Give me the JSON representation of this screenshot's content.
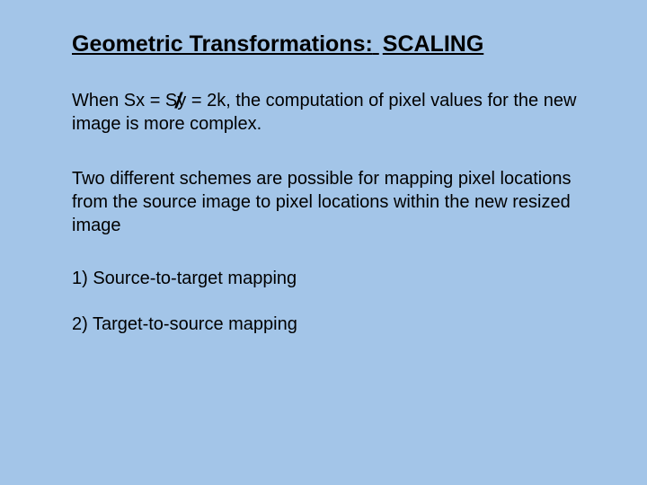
{
  "background_color": "#a3c5e8",
  "text_color": "#000000",
  "title": {
    "part1": "Geometric Transformations:",
    "part2": "SCALING",
    "fontsize": 25,
    "underline": true,
    "bold": true
  },
  "paragraphs": {
    "p1": "When Sx =  Sy = 2k, the computation of pixel values for the new image is more complex.",
    "neq_slash": "/",
    "p2": "Two different schemes are possible for mapping pixel locations from the source image to pixel locations within the new resized image"
  },
  "list": {
    "item1": "1) Source-to-target mapping",
    "item2": "2) Target-to-source mapping"
  },
  "body_fontsize": 20
}
